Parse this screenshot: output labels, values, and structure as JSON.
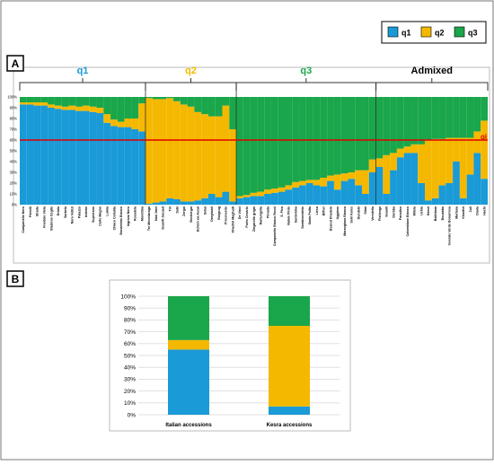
{
  "chart_data": [
    {
      "type": "stacked_bar",
      "panel": "A",
      "groups": [
        {
          "label": "q1",
          "color": "#1a9ad6",
          "categories": [
            "Campanello Nero",
            "Petrelli",
            "Strada",
            "Frantoio Viola",
            "Stazione Coglio",
            "Ertula",
            "Sarbela",
            "Nero Vellizi",
            "Palazzo",
            "Adamo",
            "Soperrano",
            "Carlo Magno",
            "Lumia",
            "Chiaro Cellulda",
            "Bonamimo Bianco",
            "Ingrana Nero",
            "Rosadela",
            "Morettina"
          ]
        },
        {
          "label": "q2",
          "color": "#f5b800",
          "categories": [
            "Tre Mecedaraga",
            "Nab Jmel",
            "Sounfil Jaouad",
            "Tiri",
            "Sabi",
            "Zergui",
            "Bechergui",
            "Dchich wa Assal",
            "Sekai",
            "Dorghanii",
            "Bargoug",
            "Procovunto",
            "Khadhri Maghudi"
          ]
        },
        {
          "label": "q3",
          "color": "#1aa64a",
          "categories": [
            "De Vinci",
            "Porto Cesario",
            "Zingarello grigio",
            "Ramungella",
            "Pinnata",
            "Campanello Bianco Rossi",
            "S. Pica",
            "Natale Pinto",
            "Sardemina",
            "Sambenedetto",
            "Santa Palita",
            "Liesu",
            "Bifher",
            "Bezoul Khadem",
            "Uggiano",
            "Marangiana Bianca",
            "Sehl Kares",
            "Dundahi",
            "Slimi",
            "Veredella"
          ]
        },
        {
          "label": "Admixed",
          "color": "#000000",
          "categories": [
            "Pistienga",
            "Soualli",
            "Dorbba",
            "Paradiso",
            "Colombiane Bianco",
            "Mitola",
            "Uchia",
            "Hemri",
            "Bakhbam",
            "Bouabba",
            "Inverale Verde Bonarrosa",
            "Martana",
            "Khadhri",
            "Zuli",
            "Ouala",
            "Hachi"
          ]
        }
      ],
      "series": [
        {
          "name": "q1",
          "color": "#1a9ad6",
          "values": [
            93,
            93,
            92,
            92,
            90,
            89,
            88,
            88,
            87,
            87,
            86,
            85,
            76,
            73,
            72,
            72,
            70,
            68,
            1,
            2,
            3,
            6,
            5,
            3,
            3,
            4,
            6,
            10,
            7,
            12,
            3,
            6,
            7,
            8,
            8,
            10,
            11,
            12,
            14,
            16,
            18,
            20,
            18,
            17,
            22,
            14,
            22,
            24,
            18,
            10,
            30,
            35,
            10,
            32,
            44,
            48,
            48,
            20,
            4,
            6,
            18,
            20,
            40,
            6,
            28,
            48,
            24
          ]
        },
        {
          "name": "q2",
          "color": "#f5b800",
          "values": [
            2,
            2,
            3,
            3,
            3,
            3,
            3,
            4,
            4,
            5,
            5,
            5,
            8,
            6,
            5,
            8,
            10,
            26,
            98,
            96,
            95,
            93,
            91,
            90,
            88,
            82,
            78,
            72,
            75,
            80,
            67,
            2,
            2,
            3,
            4,
            4,
            4,
            4,
            4,
            5,
            4,
            3,
            5,
            8,
            5,
            14,
            7,
            6,
            14,
            22,
            12,
            8,
            36,
            16,
            8,
            6,
            8,
            36,
            56,
            55,
            43,
            42,
            22,
            56,
            34,
            20,
            54
          ]
        },
        {
          "name": "q3",
          "color": "#1aa64a",
          "values": [
            5,
            5,
            5,
            5,
            7,
            8,
            9,
            8,
            9,
            8,
            9,
            10,
            16,
            21,
            23,
            20,
            20,
            6,
            1,
            2,
            2,
            1,
            4,
            7,
            9,
            14,
            16,
            18,
            18,
            8,
            30,
            92,
            91,
            89,
            88,
            86,
            85,
            84,
            82,
            79,
            78,
            77,
            77,
            75,
            73,
            72,
            71,
            70,
            68,
            68,
            58,
            57,
            54,
            52,
            48,
            46,
            44,
            44,
            40,
            39,
            39,
            38,
            38,
            38,
            38,
            32,
            22
          ]
        }
      ],
      "ylim": [
        0,
        100
      ],
      "yticks": [
        {
          "value": 0,
          "label": "0%"
        },
        {
          "value": 10,
          "label": "10%"
        },
        {
          "value": 20,
          "label": "20%"
        },
        {
          "value": 30,
          "label": "30%"
        },
        {
          "value": 40,
          "label": "40%"
        },
        {
          "value": 50,
          "label": "50%"
        },
        {
          "value": 60,
          "label": "60%"
        },
        {
          "value": 70,
          "label": "70%"
        },
        {
          "value": 80,
          "label": "80%"
        },
        {
          "value": 90,
          "label": "90%"
        },
        {
          "value": 100,
          "label": "100%"
        }
      ],
      "threshold": {
        "value": 60,
        "label": "qi",
        "color": "#e00000"
      },
      "legend": "top-right"
    },
    {
      "type": "stacked_bar",
      "panel": "B",
      "categories": [
        "Italian accessions",
        "Kesra accessions"
      ],
      "series": [
        {
          "name": "q1",
          "color": "#1a9ad6",
          "values": [
            55,
            7
          ]
        },
        {
          "name": "q2",
          "color": "#f5b800",
          "values": [
            8,
            68
          ]
        },
        {
          "name": "q3",
          "color": "#1aa64a",
          "values": [
            37,
            25
          ]
        }
      ],
      "ylim": [
        0,
        100
      ],
      "yticks": [
        {
          "value": 0,
          "label": "0%"
        },
        {
          "value": 10,
          "label": "10%"
        },
        {
          "value": 20,
          "label": "20%"
        },
        {
          "value": 30,
          "label": "30%"
        },
        {
          "value": 40,
          "label": "40%"
        },
        {
          "value": 50,
          "label": "50%"
        },
        {
          "value": 60,
          "label": "60%"
        },
        {
          "value": 70,
          "label": "70%"
        },
        {
          "value": 80,
          "label": "80%"
        },
        {
          "value": 90,
          "label": "90%"
        },
        {
          "value": 100,
          "label": "100%"
        }
      ],
      "grid": true
    }
  ]
}
